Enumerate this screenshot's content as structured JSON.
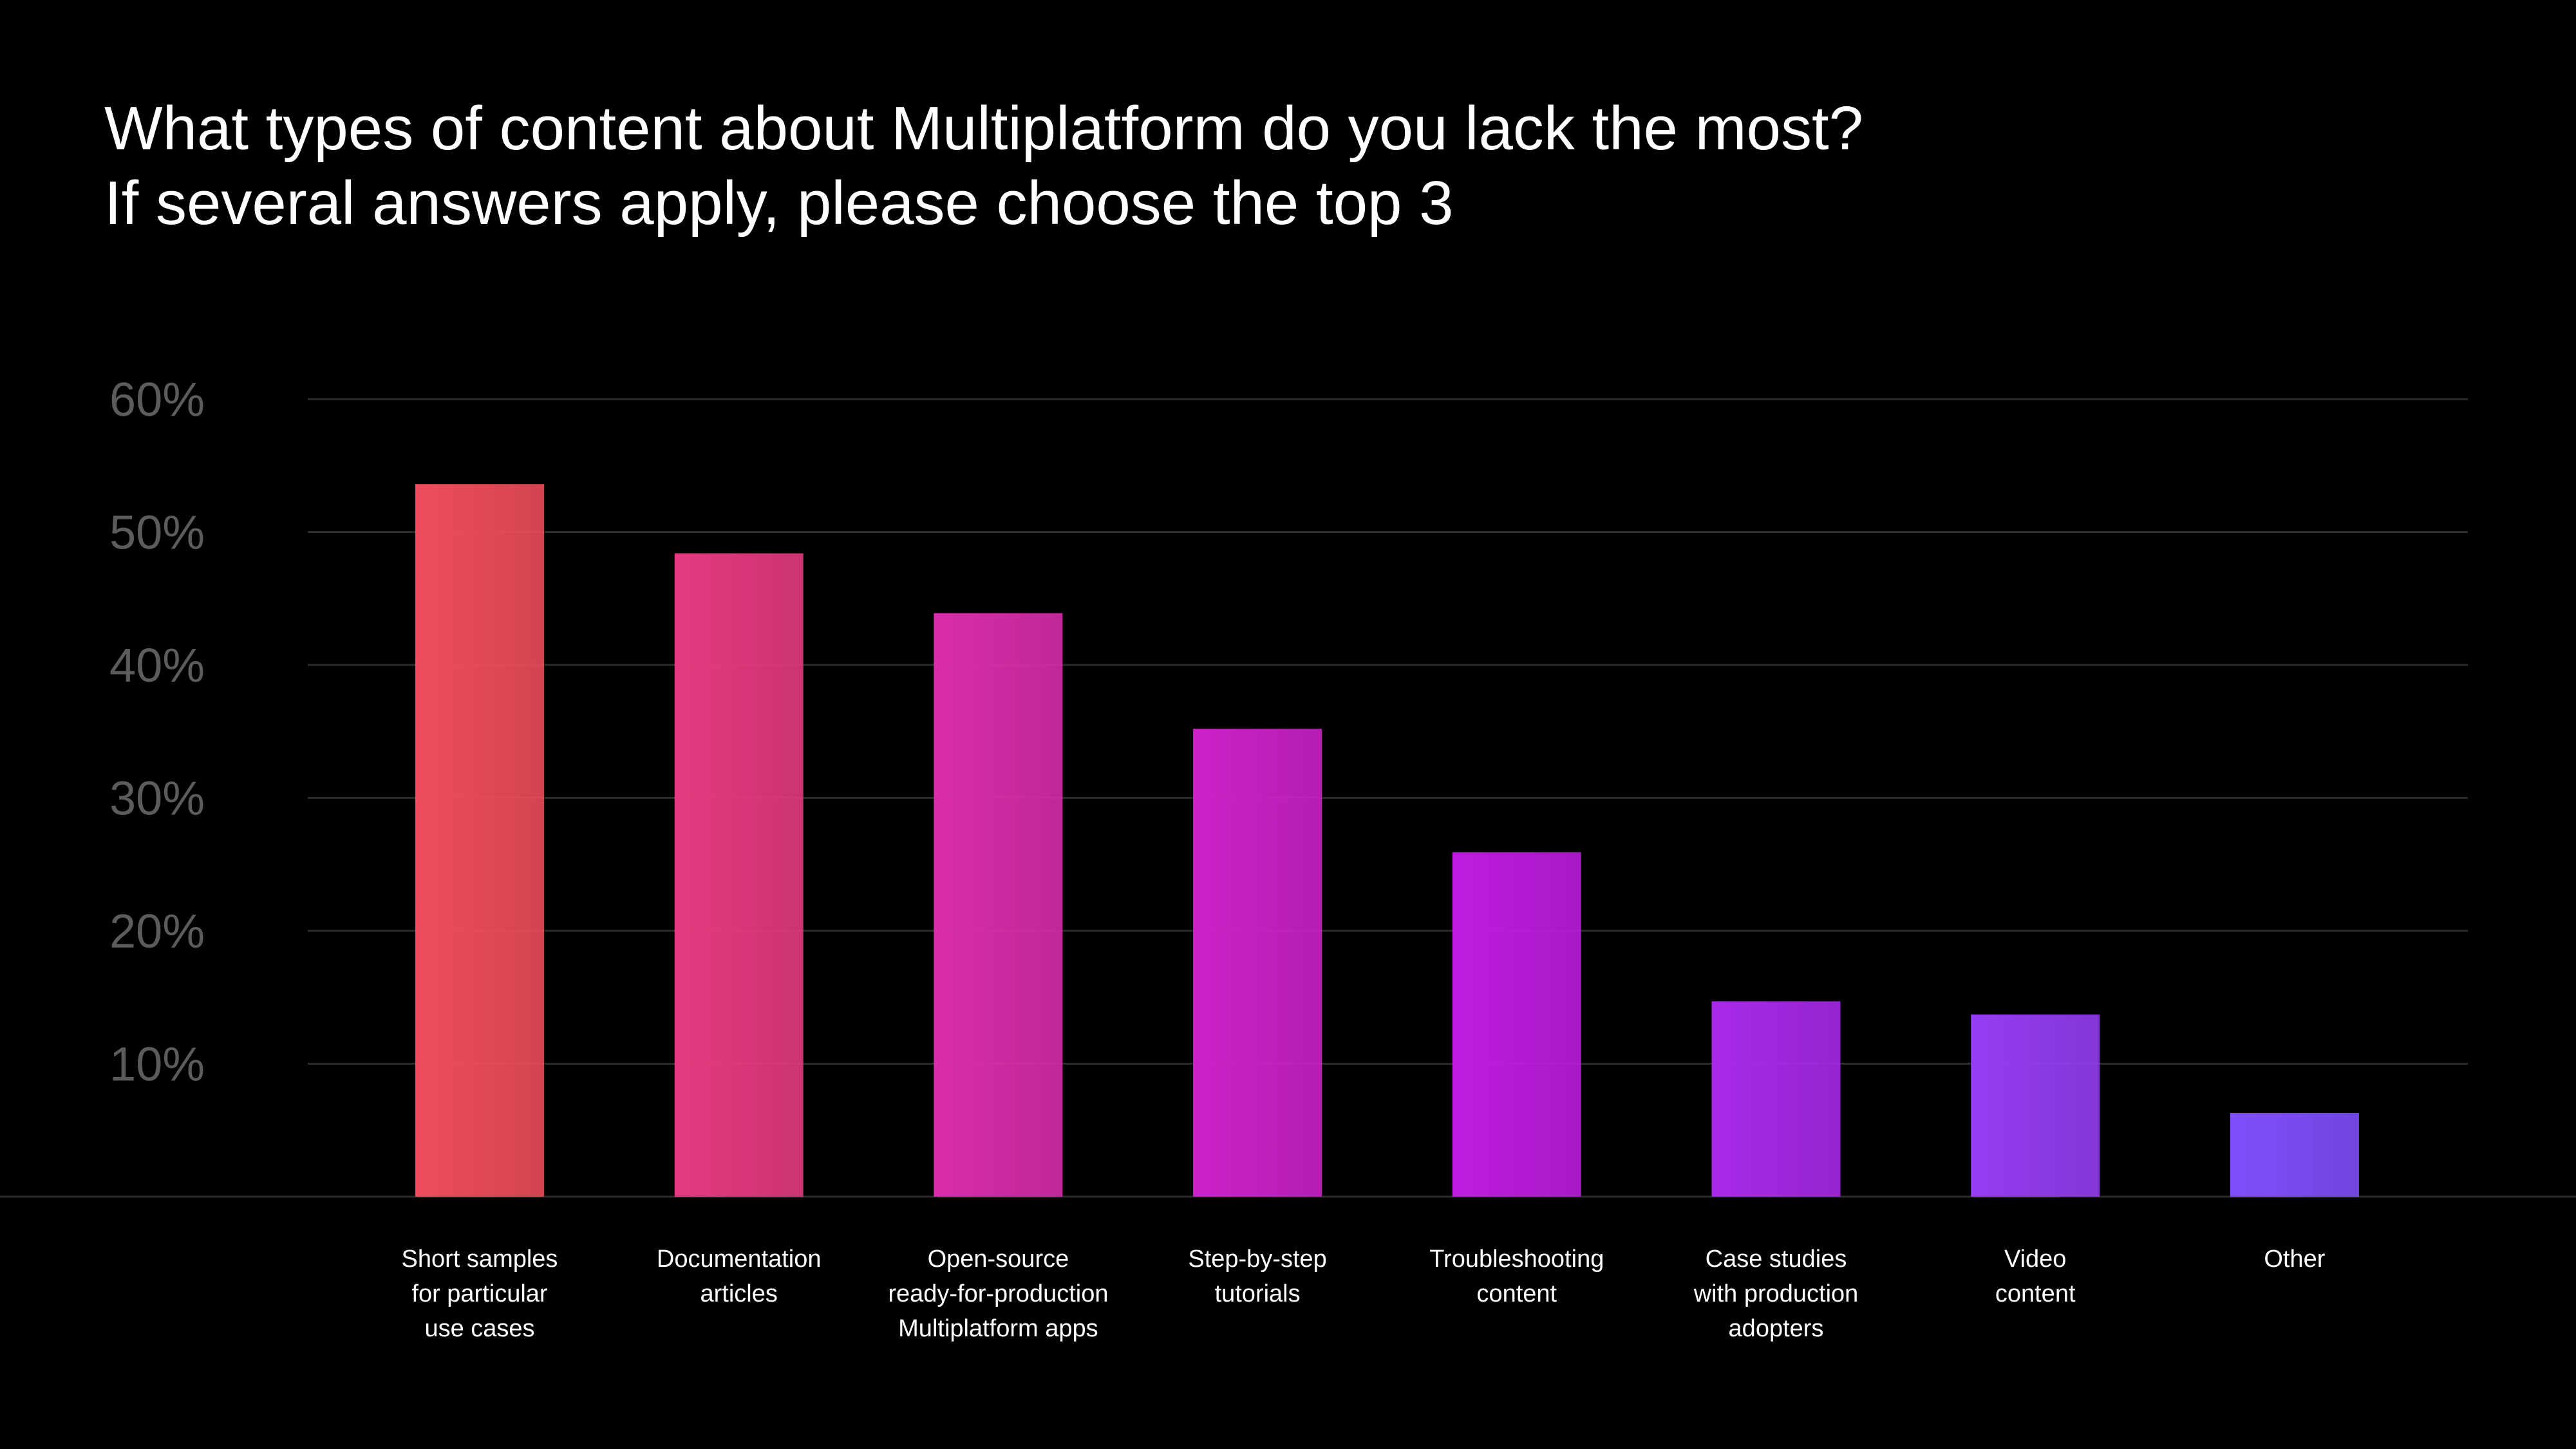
{
  "title": {
    "line1": "What types of content about Multiplatform do you lack the most?",
    "line2": "If several answers apply, please choose the top 3"
  },
  "chart_data": {
    "type": "bar",
    "title": "What types of content about Multiplatform do you lack the most? If several answers apply, please choose the top 3",
    "xlabel": "",
    "ylabel": "",
    "ylim": [
      0,
      60
    ],
    "yticks": [
      10,
      20,
      30,
      40,
      50,
      60
    ],
    "ytick_labels": [
      "10%",
      "20%",
      "30%",
      "40%",
      "50%",
      "60%"
    ],
    "grid": true,
    "legend": "none",
    "categories": [
      [
        "Short samples",
        "for particular",
        "use cases"
      ],
      [
        "Documentation",
        "articles"
      ],
      [
        "Open-source",
        "ready-for-production",
        "Multiplatform apps"
      ],
      [
        "Step-by-step",
        "tutorials"
      ],
      [
        "Troubleshooting",
        "content"
      ],
      [
        "Case studies",
        "with production",
        "adopters"
      ],
      [
        "Video",
        "content"
      ],
      [
        "Other"
      ]
    ],
    "values": [
      53.6,
      48.4,
      43.9,
      35.2,
      25.9,
      14.7,
      13.7,
      6.3
    ],
    "colors": [
      "#ef4d5c",
      "#e63a80",
      "#d92dab",
      "#cc22c9",
      "#bf1ce0",
      "#a82aea",
      "#953df3",
      "#7f4ffc"
    ]
  }
}
